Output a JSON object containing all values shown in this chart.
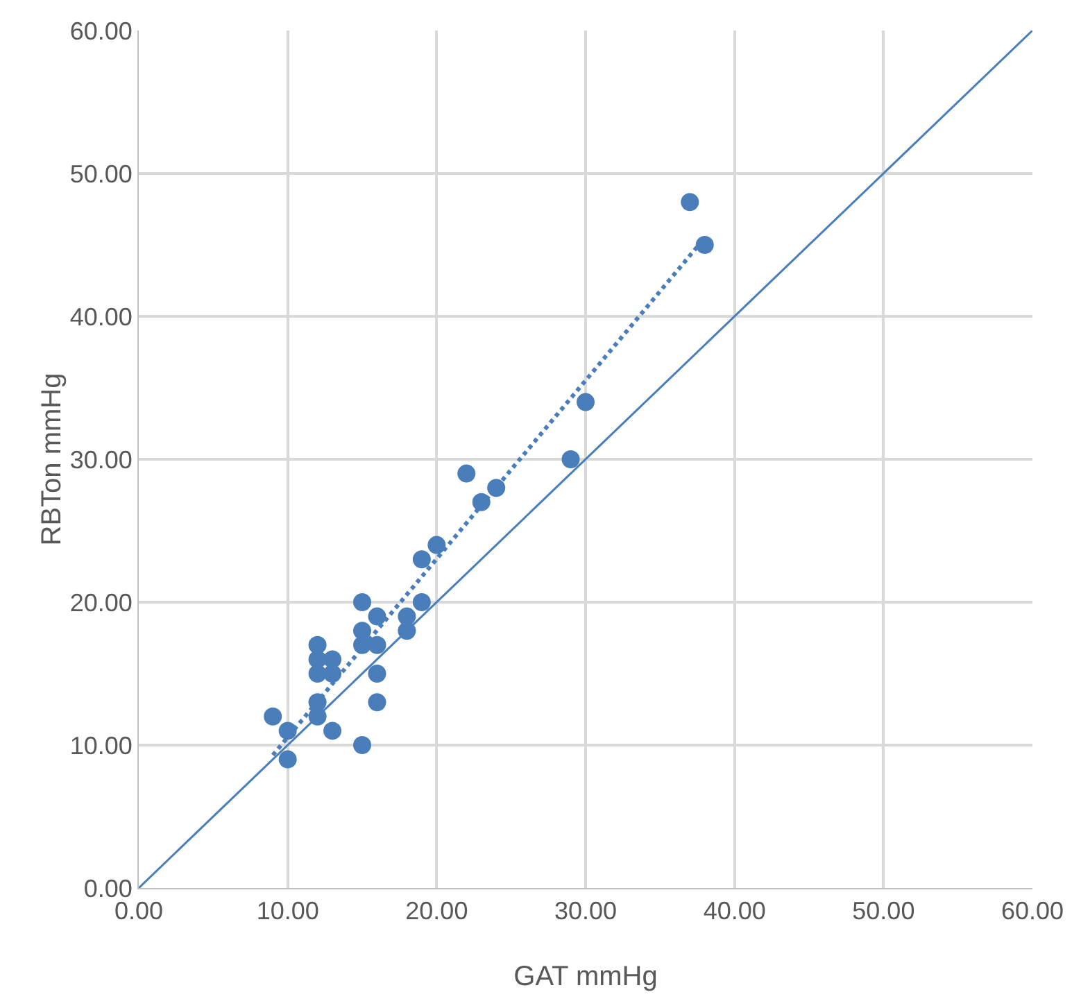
{
  "chart_data": {
    "type": "scatter",
    "xlabel": "GAT mmHg",
    "ylabel": "RBTon mmHg",
    "xlim": [
      0,
      60
    ],
    "ylim": [
      0,
      60
    ],
    "xticks": [
      {
        "value": 0,
        "label": "0.00"
      },
      {
        "value": 10,
        "label": "10.00"
      },
      {
        "value": 20,
        "label": "20.00"
      },
      {
        "value": 30,
        "label": "30.00"
      },
      {
        "value": 40,
        "label": "40.00"
      },
      {
        "value": 50,
        "label": "50.00"
      },
      {
        "value": 60,
        "label": "60.00"
      }
    ],
    "yticks": [
      {
        "value": 0,
        "label": "0.00"
      },
      {
        "value": 10,
        "label": "10.00"
      },
      {
        "value": 20,
        "label": "20.00"
      },
      {
        "value": 30,
        "label": "30.00"
      },
      {
        "value": 40,
        "label": "40.00"
      },
      {
        "value": 50,
        "label": "50.00"
      },
      {
        "value": 60,
        "label": "60.00"
      }
    ],
    "grid": true,
    "series": [
      {
        "marker": "circle",
        "color": "#4a7ebb",
        "x": [
          9,
          10,
          10,
          12,
          12,
          12,
          12,
          12,
          13,
          13,
          13,
          15,
          15,
          15,
          15,
          16,
          16,
          16,
          16,
          18,
          18,
          19,
          19,
          20,
          22,
          23,
          24,
          29,
          30,
          37,
          38
        ],
        "values": [
          12,
          11,
          9,
          17,
          16,
          15,
          13,
          12,
          16,
          15,
          11,
          20,
          18,
          17,
          10,
          19,
          17,
          15,
          13,
          19,
          18,
          23,
          20,
          24,
          29,
          27,
          28,
          30,
          34,
          48,
          45
        ]
      },
      {
        "type": "line",
        "color": "#4a7ebb",
        "line_style": "dotted",
        "marker": "none",
        "x": [
          9,
          38
        ],
        "values": [
          9.3,
          45.5
        ]
      },
      {
        "type": "line",
        "color": "#4a7ebb",
        "line_style": "solid",
        "marker": "none",
        "x": [
          0,
          60
        ],
        "values": [
          0,
          60
        ]
      }
    ]
  }
}
